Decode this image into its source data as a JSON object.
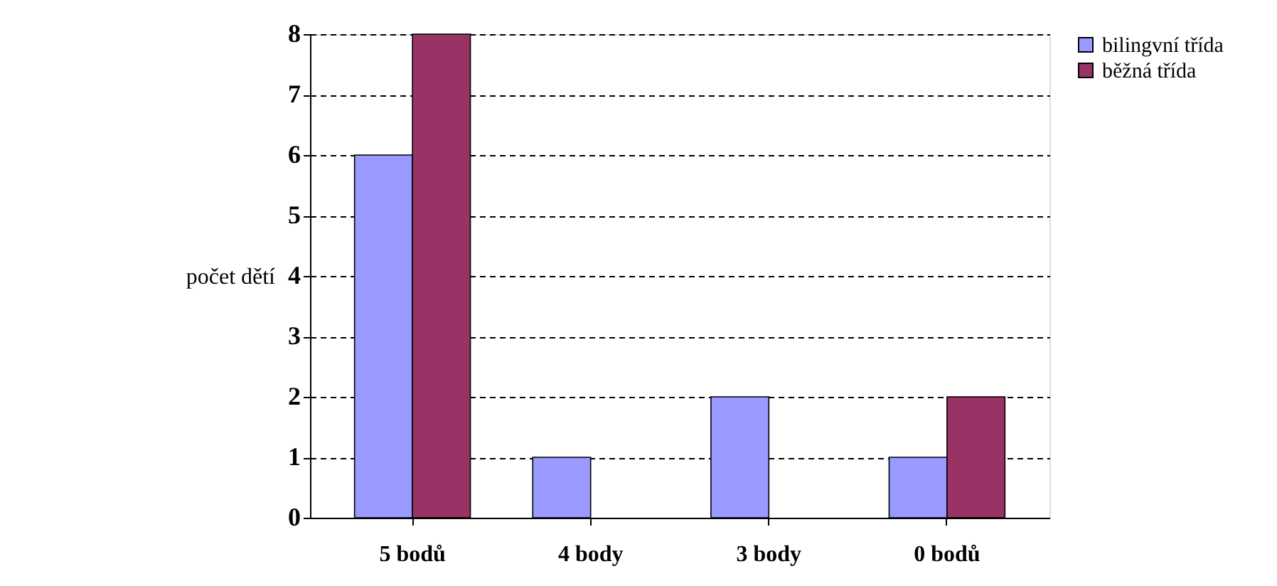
{
  "chart_data": {
    "type": "bar",
    "ylabel": "počet dětí",
    "categories": [
      "5 bodů",
      "4 body",
      "3 body",
      "0 bodů"
    ],
    "series": [
      {
        "name": "bilingvní třída",
        "color": "#9999ff",
        "values": [
          6,
          1,
          2,
          1
        ]
      },
      {
        "name": "běžná třída",
        "color": "#993366",
        "values": [
          8,
          0,
          0,
          2
        ]
      }
    ],
    "ylim": [
      0,
      8
    ],
    "yticks": [
      0,
      1,
      2,
      3,
      4,
      5,
      6,
      7,
      8
    ],
    "grid": "y",
    "legend": "right"
  }
}
